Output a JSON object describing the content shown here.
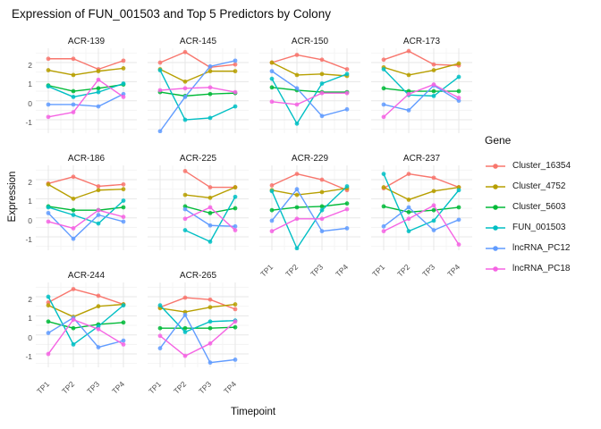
{
  "title": "Expression of FUN_001503 and Top 5 Predictors by Colony",
  "x_axis_label": "Timepoint",
  "y_axis_label": "Expression",
  "legend": {
    "title": "Gene",
    "entries": [
      {
        "label": "Cluster_16354",
        "color": "#F8766D"
      },
      {
        "label": "Cluster_4752",
        "color": "#B79F00"
      },
      {
        "label": "Cluster_5603",
        "color": "#00BA38"
      },
      {
        "label": "FUN_001503",
        "color": "#00BFC4"
      },
      {
        "label": "lncRNA_PC12",
        "color": "#619CFF"
      },
      {
        "label": "lncRNA_PC18",
        "color": "#F564E3"
      }
    ]
  },
  "chart_data": {
    "type": "line",
    "title": "Expression of FUN_001503 and Top 5 Predictors by Colony",
    "xlabel": "Timepoint",
    "ylabel": "Expression",
    "x": [
      "TP1",
      "TP2",
      "TP3",
      "TP4"
    ],
    "y_ticks": [
      2,
      1,
      0,
      -1
    ],
    "ylim": [
      -1.7,
      2.75
    ],
    "grid": true,
    "legend_position": "right",
    "facet_by": "Colony",
    "series_names": [
      "Cluster_16354",
      "Cluster_4752",
      "Cluster_5603",
      "FUN_001503",
      "lncRNA_PC12",
      "lncRNA_PC18"
    ],
    "series_colors": {
      "Cluster_16354": "#F8766D",
      "Cluster_4752": "#B79F00",
      "Cluster_5603": "#00BA38",
      "FUN_001503": "#00BFC4",
      "lncRNA_PC12": "#619CFF",
      "lncRNA_PC18": "#F564E3"
    },
    "facets": [
      {
        "colony": "ACR-139",
        "series": {
          "Cluster_16354": [
            2.2,
            2.2,
            1.65,
            2.1
          ],
          "Cluster_4752": [
            1.6,
            1.35,
            1.55,
            1.7
          ],
          "Cluster_5603": [
            0.8,
            0.5,
            0.65,
            0.85
          ],
          "FUN_001503": [
            0.75,
            0.2,
            0.45,
            0.9
          ],
          "lncRNA_PC12": [
            -0.2,
            -0.2,
            -0.3,
            0.35
          ],
          "lncRNA_PC18": [
            -0.85,
            -0.6,
            1.1,
            0.2
          ]
        }
      },
      {
        "colony": "ACR-145",
        "series": {
          "Cluster_16354": [
            2.0,
            2.55,
            1.75,
            1.9
          ],
          "Cluster_4752": [
            1.65,
            1.0,
            1.55,
            1.55
          ],
          "Cluster_5603": [
            0.45,
            0.25,
            0.35,
            0.4
          ],
          "FUN_001503": [
            1.6,
            -1.0,
            -0.9,
            -0.3
          ],
          "lncRNA_PC12": [
            -1.6,
            0.2,
            1.8,
            2.1
          ],
          "lncRNA_PC18": [
            0.55,
            0.65,
            0.7,
            0.45
          ]
        }
      },
      {
        "colony": "ACR-150",
        "series": {
          "Cluster_16354": [
            2.0,
            2.4,
            2.15,
            1.65
          ],
          "Cluster_4752": [
            2.0,
            1.35,
            1.4,
            1.3
          ],
          "Cluster_5603": [
            0.7,
            0.55,
            0.45,
            0.45
          ],
          "FUN_001503": [
            1.15,
            -1.2,
            0.9,
            1.4
          ],
          "lncRNA_PC12": [
            1.55,
            0.65,
            -0.8,
            -0.45
          ],
          "lncRNA_PC18": [
            -0.05,
            -0.2,
            0.4,
            0.4
          ]
        }
      },
      {
        "colony": "ACR-173",
        "series": {
          "Cluster_16354": [
            2.15,
            2.6,
            1.9,
            1.85
          ],
          "Cluster_4752": [
            1.75,
            1.35,
            1.6,
            1.95
          ],
          "Cluster_5603": [
            0.65,
            0.5,
            0.5,
            0.5
          ],
          "FUN_001503": [
            1.65,
            0.3,
            0.25,
            1.25
          ],
          "lncRNA_PC12": [
            -0.2,
            -0.5,
            0.8,
            0.0
          ],
          "lncRNA_PC18": [
            -0.85,
            0.35,
            0.85,
            0.15
          ]
        }
      },
      {
        "colony": "ACR-186",
        "series": {
          "Cluster_16354": [
            1.8,
            2.15,
            1.65,
            1.75
          ],
          "Cluster_4752": [
            1.75,
            1.0,
            1.45,
            1.5
          ],
          "Cluster_5603": [
            0.6,
            0.4,
            0.4,
            0.55
          ],
          "FUN_001503": [
            0.55,
            0.15,
            -0.3,
            0.9
          ],
          "lncRNA_PC12": [
            0.25,
            -1.1,
            0.15,
            -0.2
          ],
          "lncRNA_PC18": [
            -0.2,
            -0.55,
            0.4,
            0.05
          ]
        }
      },
      {
        "colony": "ACR-225",
        "series": {
          "Cluster_16354": [
            null,
            2.45,
            1.6,
            1.6
          ],
          "Cluster_4752": [
            null,
            1.2,
            1.05,
            1.6
          ],
          "Cluster_5603": [
            null,
            0.6,
            0.25,
            0.5
          ],
          "FUN_001503": [
            null,
            -0.65,
            -1.25,
            1.1
          ],
          "lncRNA_PC12": [
            null,
            0.45,
            -0.4,
            -0.45
          ],
          "lncRNA_PC18": [
            null,
            -0.05,
            0.55,
            -0.65
          ]
        }
      },
      {
        "colony": "ACR-229",
        "series": {
          "Cluster_16354": [
            1.7,
            2.3,
            2.0,
            1.45
          ],
          "Cluster_4752": [
            1.45,
            1.2,
            1.35,
            1.55
          ],
          "Cluster_5603": [
            0.4,
            0.55,
            0.6,
            0.75
          ],
          "FUN_001503": [
            1.4,
            -1.6,
            0.4,
            1.65
          ],
          "lncRNA_PC12": [
            -0.15,
            1.5,
            -0.7,
            -0.55
          ],
          "lncRNA_PC18": [
            -0.7,
            -0.05,
            -0.05,
            0.45
          ]
        }
      },
      {
        "colony": "ACR-237",
        "series": {
          "Cluster_16354": [
            1.55,
            2.3,
            2.1,
            1.6
          ],
          "Cluster_4752": [
            1.6,
            0.95,
            1.4,
            1.6
          ],
          "Cluster_5603": [
            0.6,
            0.3,
            0.4,
            0.55
          ],
          "FUN_001503": [
            2.3,
            -0.7,
            -0.15,
            1.45
          ],
          "lncRNA_PC12": [
            -0.45,
            0.55,
            -0.65,
            -0.1
          ],
          "lncRNA_PC18": [
            -0.7,
            -0.05,
            0.65,
            -1.4
          ]
        }
      },
      {
        "colony": "ACR-244",
        "series": {
          "Cluster_16354": [
            1.7,
            2.4,
            2.05,
            1.6
          ],
          "Cluster_4752": [
            1.55,
            0.95,
            1.5,
            1.6
          ],
          "Cluster_5603": [
            0.7,
            0.35,
            0.55,
            0.65
          ],
          "FUN_001503": [
            2.0,
            -0.5,
            0.45,
            1.55
          ],
          "lncRNA_PC12": [
            0.1,
            0.9,
            -0.65,
            -0.3
          ],
          "lncRNA_PC18": [
            -1.0,
            0.8,
            0.3,
            -0.5
          ]
        }
      },
      {
        "colony": "ACR-265",
        "series": {
          "Cluster_16354": [
            1.45,
            1.95,
            1.85,
            1.35
          ],
          "Cluster_4752": [
            1.4,
            1.2,
            1.45,
            1.6
          ],
          "Cluster_5603": [
            0.35,
            0.35,
            0.35,
            0.4
          ],
          "FUN_001503": [
            1.55,
            0.15,
            0.7,
            0.75
          ],
          "lncRNA_PC12": [
            -0.7,
            1.05,
            -1.45,
            -1.3
          ],
          "lncRNA_PC18": [
            -0.05,
            -1.1,
            -0.45,
            0.7
          ]
        }
      }
    ]
  }
}
